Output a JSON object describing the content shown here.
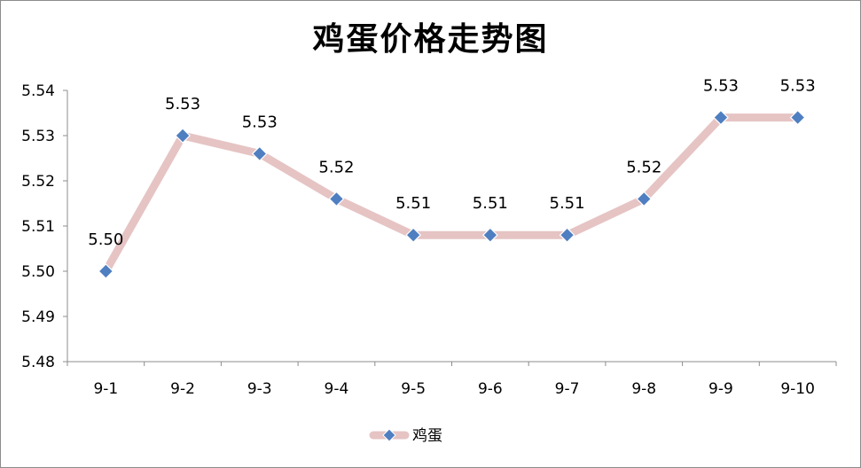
{
  "chart_data": {
    "type": "line",
    "title": "鸡蛋价格走势图",
    "xlabel": "",
    "ylabel": "",
    "categories": [
      "9-1",
      "9-2",
      "9-3",
      "9-4",
      "9-5",
      "9-6",
      "9-7",
      "9-8",
      "9-9",
      "9-10"
    ],
    "series": [
      {
        "name": "鸡蛋",
        "values": [
          5.5,
          5.53,
          5.526,
          5.516,
          5.508,
          5.508,
          5.508,
          5.516,
          5.534,
          5.534
        ],
        "data_labels": [
          "5.50",
          "5.53",
          "5.53",
          "5.52",
          "5.51",
          "5.51",
          "5.51",
          "5.52",
          "5.53",
          "5.53"
        ],
        "line_color": "#e6c4c4",
        "marker_color": "#4f7fc1",
        "marker": "diamond"
      }
    ],
    "ylim": [
      5.48,
      5.54
    ],
    "yticks": [
      5.48,
      5.49,
      5.5,
      5.51,
      5.52,
      5.53,
      5.54
    ],
    "ytick_labels": [
      "5.48",
      "5.49",
      "5.50",
      "5.51",
      "5.52",
      "5.53",
      "5.54"
    ],
    "grid": false,
    "legend_position": "bottom"
  }
}
